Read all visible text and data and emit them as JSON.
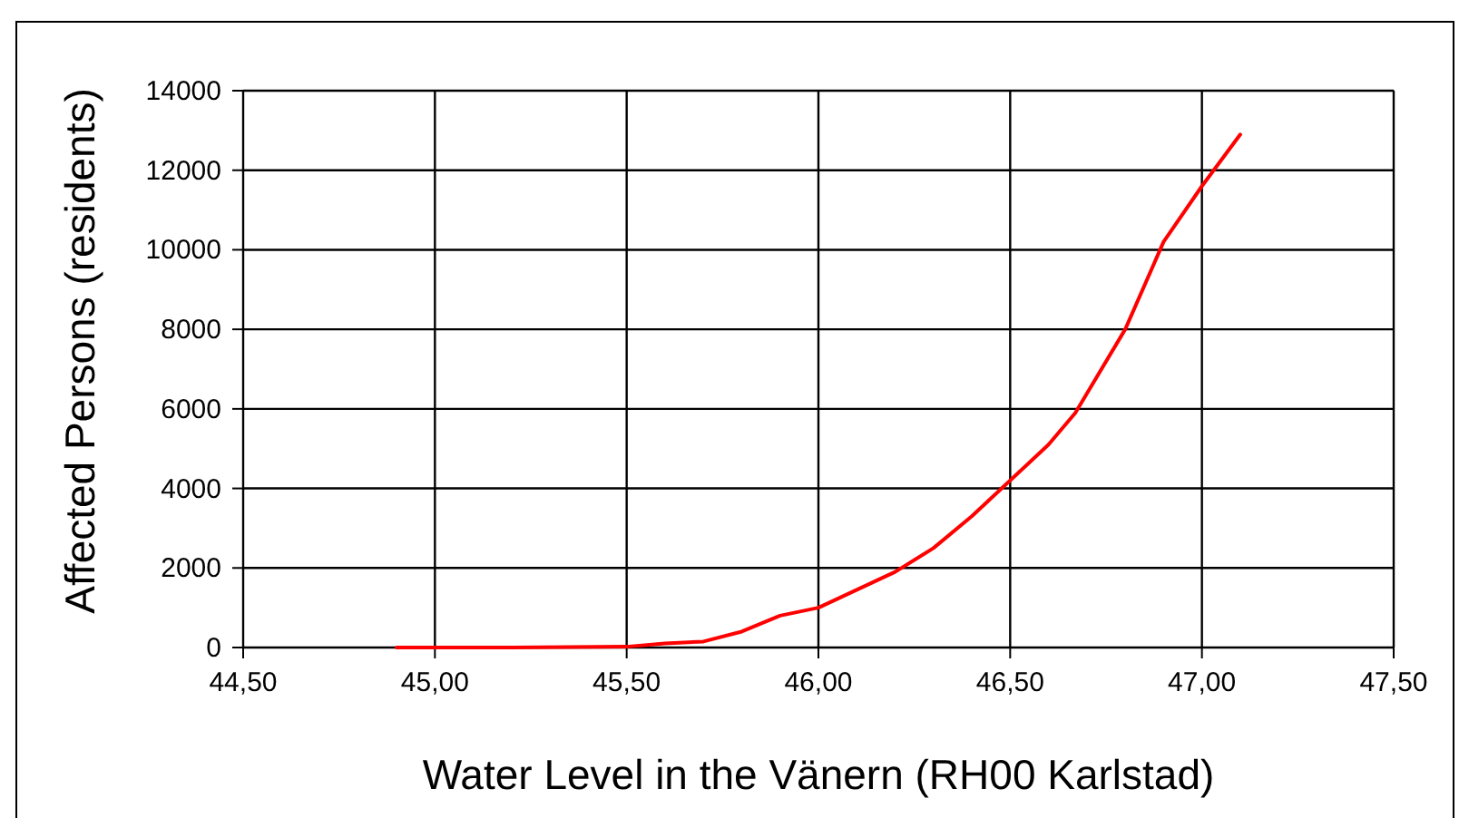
{
  "chart_data": {
    "type": "line",
    "xlabel": "Water Level in the Vänern (RH00 Karlstad)",
    "ylabel": "Affected Persons (residents)",
    "x": [
      44.9,
      45.2,
      45.5,
      45.6,
      45.7,
      45.8,
      45.9,
      46.0,
      46.1,
      46.2,
      46.3,
      46.4,
      46.5,
      46.6,
      46.67,
      46.8,
      46.9,
      47.0,
      47.1
    ],
    "series": [
      {
        "color": "#ff0000",
        "values": [
          0,
          0,
          20,
          100,
          150,
          400,
          800,
          1000,
          1450,
          1900,
          2500,
          3300,
          4200,
          5100,
          5900,
          8000,
          10200,
          11600,
          12900
        ]
      }
    ],
    "xlim": [
      44.5,
      47.5
    ],
    "xticks": [
      {
        "value": 44.5,
        "label": "44,50"
      },
      {
        "value": 45,
        "label": "45,00"
      },
      {
        "value": 45.5,
        "label": "45,50"
      },
      {
        "value": 46,
        "label": "46,00"
      },
      {
        "value": 46.5,
        "label": "46,50"
      },
      {
        "value": 47,
        "label": "47,00"
      },
      {
        "value": 47.5,
        "label": "47,50"
      }
    ],
    "ylim": [
      0,
      14000
    ],
    "yticks": [
      0,
      2000,
      4000,
      6000,
      8000,
      10000,
      12000,
      14000
    ],
    "grid": true,
    "marker": "none",
    "line_style": "solid"
  }
}
